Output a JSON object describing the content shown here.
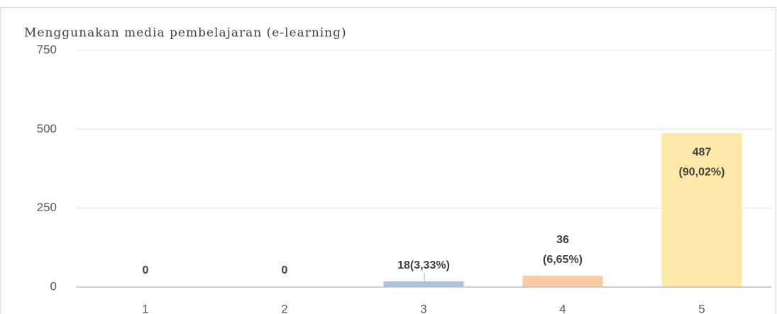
{
  "chart_data": {
    "type": "bar",
    "title": "Menggunakan media pembelajaran (e-learning)",
    "categories": [
      "1",
      "2",
      "3",
      "4",
      "5"
    ],
    "values": [
      0,
      0,
      18,
      36,
      487
    ],
    "value_labels": [
      "0",
      "0",
      "18(3,33%)",
      [
        "36",
        "(6,65%)"
      ],
      [
        "487",
        "(90,02%)"
      ]
    ],
    "colors": [
      "#a5a5a5",
      "#a5a5a5",
      "#adc2e0",
      "#f8cba6",
      "#ffe8a8"
    ],
    "ylim": [
      0,
      750
    ],
    "yticks": [
      0,
      250,
      500,
      750
    ],
    "grid": true
  }
}
